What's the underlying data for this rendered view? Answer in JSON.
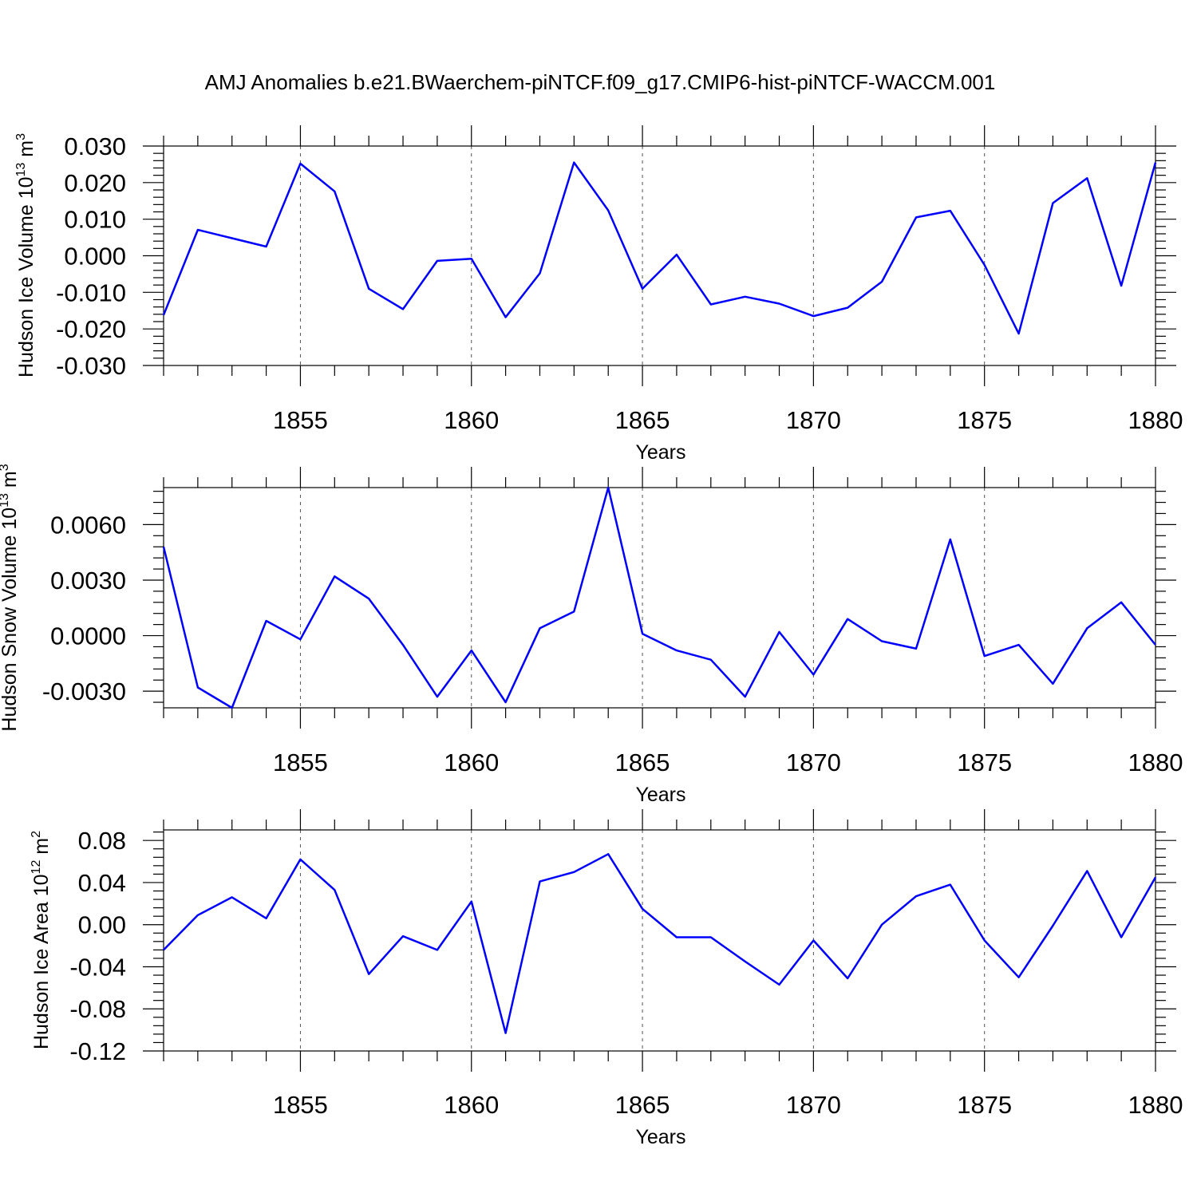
{
  "figure": {
    "title": "AMJ Anomalies b.e21.BWaerchem-piNTCF.f09_g17.CMIP6-hist-piNTCF-WACCM.001"
  },
  "colors": {
    "line": "#0000ff",
    "axis": "#000000",
    "grid": "#555555"
  },
  "chart_data": [
    {
      "type": "line",
      "ylabel_main": "Hudson Ice Volume 10",
      "ylabel_exp": "13",
      "ylabel_unit": " m",
      "ylabel_unit_exp": "3",
      "xlabel": "Years",
      "xlim": [
        1851,
        1880
      ],
      "ylim": [
        -0.03,
        0.03
      ],
      "xticks": [
        1855,
        1860,
        1865,
        1870,
        1875,
        1880
      ],
      "yticks": [
        -0.03,
        -0.02,
        -0.01,
        0.0,
        0.01,
        0.02,
        0.03
      ],
      "ytick_labels": [
        "-0.030",
        "-0.020",
        "-0.010",
        "0.000",
        "0.010",
        "0.020",
        "0.030"
      ],
      "grid": "dashed vertical lines at x ticks",
      "series": [
        {
          "x": [
            1851,
            1852,
            1853,
            1854,
            1855,
            1856,
            1857,
            1858,
            1859,
            1860,
            1861,
            1862,
            1863,
            1864,
            1865,
            1866,
            1867,
            1868,
            1869,
            1870,
            1871,
            1872,
            1873,
            1874,
            1875,
            1876,
            1877,
            1878,
            1879,
            1880
          ],
          "values": [
            -0.0162,
            0.0071,
            0.0048,
            0.0025,
            0.0252,
            0.0176,
            -0.009,
            -0.0146,
            -0.0014,
            -0.0008,
            -0.0168,
            -0.0048,
            0.0255,
            0.0124,
            -0.009,
            0.0003,
            -0.0133,
            -0.0112,
            -0.0131,
            -0.0165,
            -0.0142,
            -0.0071,
            0.0105,
            0.0123,
            -0.0025,
            -0.0213,
            0.0144,
            0.0212,
            -0.0082,
            0.0255
          ]
        }
      ]
    },
    {
      "type": "line",
      "ylabel_main": "Hudson Snow Volume 10",
      "ylabel_exp": "13",
      "ylabel_unit": " m",
      "ylabel_unit_exp": "3",
      "xlabel": "Years",
      "xlim": [
        1851,
        1880
      ],
      "ylim": [
        -0.0039,
        0.008
      ],
      "xticks": [
        1855,
        1860,
        1865,
        1870,
        1875,
        1880
      ],
      "yticks": [
        -0.003,
        0.0,
        0.003,
        0.006
      ],
      "ytick_labels": [
        "-0.0030",
        "0.0000",
        "0.0030",
        "0.0060"
      ],
      "grid": "dashed vertical lines at x ticks",
      "series": [
        {
          "x": [
            1851,
            1852,
            1853,
            1854,
            1855,
            1856,
            1857,
            1858,
            1859,
            1860,
            1861,
            1862,
            1863,
            1864,
            1865,
            1866,
            1867,
            1868,
            1869,
            1870,
            1871,
            1872,
            1873,
            1874,
            1875,
            1876,
            1877,
            1878,
            1879,
            1880
          ],
          "values": [
            0.0048,
            -0.0028,
            -0.0039,
            0.0008,
            -0.0002,
            0.0032,
            0.002,
            -0.0005,
            -0.0033,
            -0.0008,
            -0.0036,
            0.0004,
            0.0013,
            0.008,
            0.0001,
            -0.0008,
            -0.0013,
            -0.0033,
            0.0002,
            -0.0021,
            0.0009,
            -0.0003,
            -0.0007,
            0.0052,
            -0.0011,
            -0.0005,
            -0.0026,
            0.0004,
            0.0018,
            -0.0005
          ]
        }
      ]
    },
    {
      "type": "line",
      "ylabel_main": "Hudson Ice Area 10",
      "ylabel_exp": "12",
      "ylabel_unit": " m",
      "ylabel_unit_exp": "2",
      "xlabel": "Years",
      "xlim": [
        1851,
        1880
      ],
      "ylim": [
        -0.12,
        0.09
      ],
      "xticks": [
        1855,
        1860,
        1865,
        1870,
        1875,
        1880
      ],
      "yticks": [
        -0.12,
        -0.08,
        -0.04,
        0.0,
        0.04,
        0.08
      ],
      "ytick_labels": [
        "-0.12",
        "-0.08",
        "-0.04",
        "0.00",
        "0.04",
        "0.08"
      ],
      "grid": "dashed vertical lines at x ticks",
      "series": [
        {
          "x": [
            1851,
            1852,
            1853,
            1854,
            1855,
            1856,
            1857,
            1858,
            1859,
            1860,
            1861,
            1862,
            1863,
            1864,
            1865,
            1866,
            1867,
            1868,
            1869,
            1870,
            1871,
            1872,
            1873,
            1874,
            1875,
            1876,
            1877,
            1878,
            1879,
            1880
          ],
          "values": [
            -0.024,
            0.009,
            0.026,
            0.006,
            0.062,
            0.033,
            -0.047,
            -0.011,
            -0.024,
            0.022,
            -0.103,
            0.041,
            0.05,
            0.067,
            0.015,
            -0.012,
            -0.012,
            -0.035,
            -0.057,
            -0.015,
            -0.051,
            0.0,
            0.027,
            0.038,
            -0.015,
            -0.05,
            -0.001,
            0.051,
            -0.012,
            0.045
          ]
        }
      ]
    }
  ]
}
